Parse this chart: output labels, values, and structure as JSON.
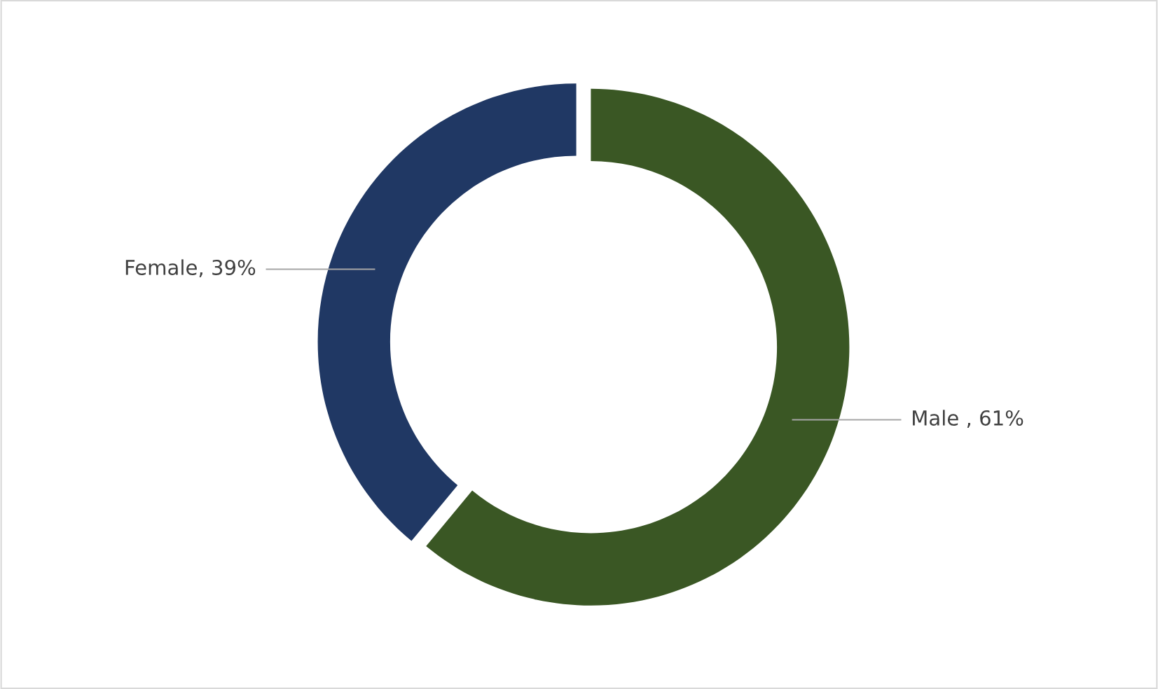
{
  "chart_data": {
    "type": "donut",
    "categories": [
      "Male ",
      "Female"
    ],
    "values": [
      61,
      39
    ],
    "colors": [
      "#3a5724",
      "#203864"
    ],
    "value_labels": [
      ", 61%",
      ", 39%"
    ],
    "legend": false
  }
}
